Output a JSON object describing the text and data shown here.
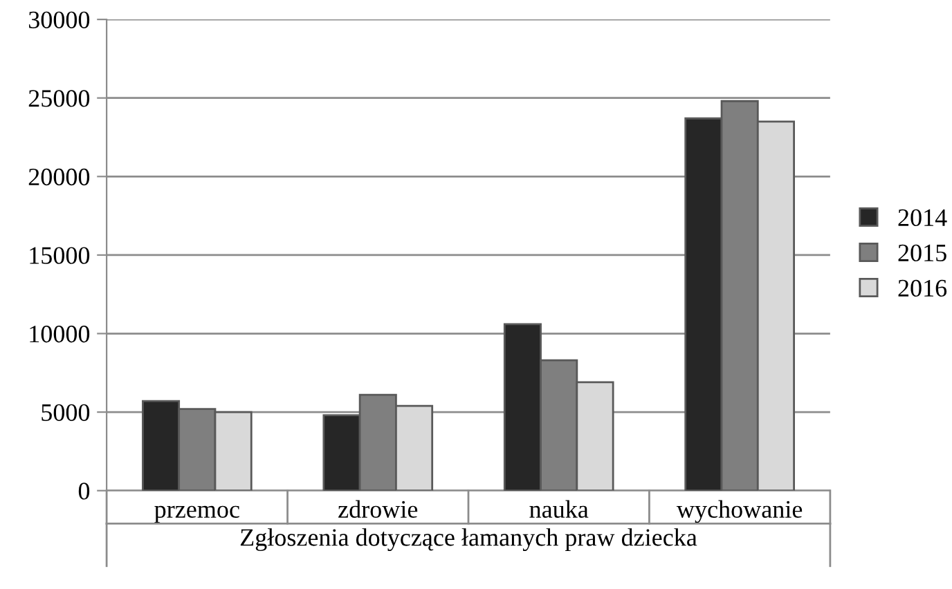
{
  "chart_data": {
    "type": "bar",
    "xlabel": "Zgłoszenia dotyczące łamanych praw dziecka",
    "categories": [
      "przemoc",
      "zdrowie",
      "nauka",
      "wychowanie"
    ],
    "series": [
      {
        "name": "2014",
        "color": "#262626",
        "values": [
          5700,
          4800,
          10600,
          23700
        ]
      },
      {
        "name": "2015",
        "color": "#7f7f7f",
        "values": [
          5200,
          6100,
          8300,
          24800
        ]
      },
      {
        "name": "2016",
        "color": "#d9d9d9",
        "values": [
          5000,
          5400,
          6900,
          23500
        ]
      }
    ],
    "ylim": [
      0,
      30000
    ],
    "yticks": [
      0,
      5000,
      10000,
      15000,
      20000,
      25000,
      30000
    ],
    "grid": "y",
    "legend": "right"
  }
}
